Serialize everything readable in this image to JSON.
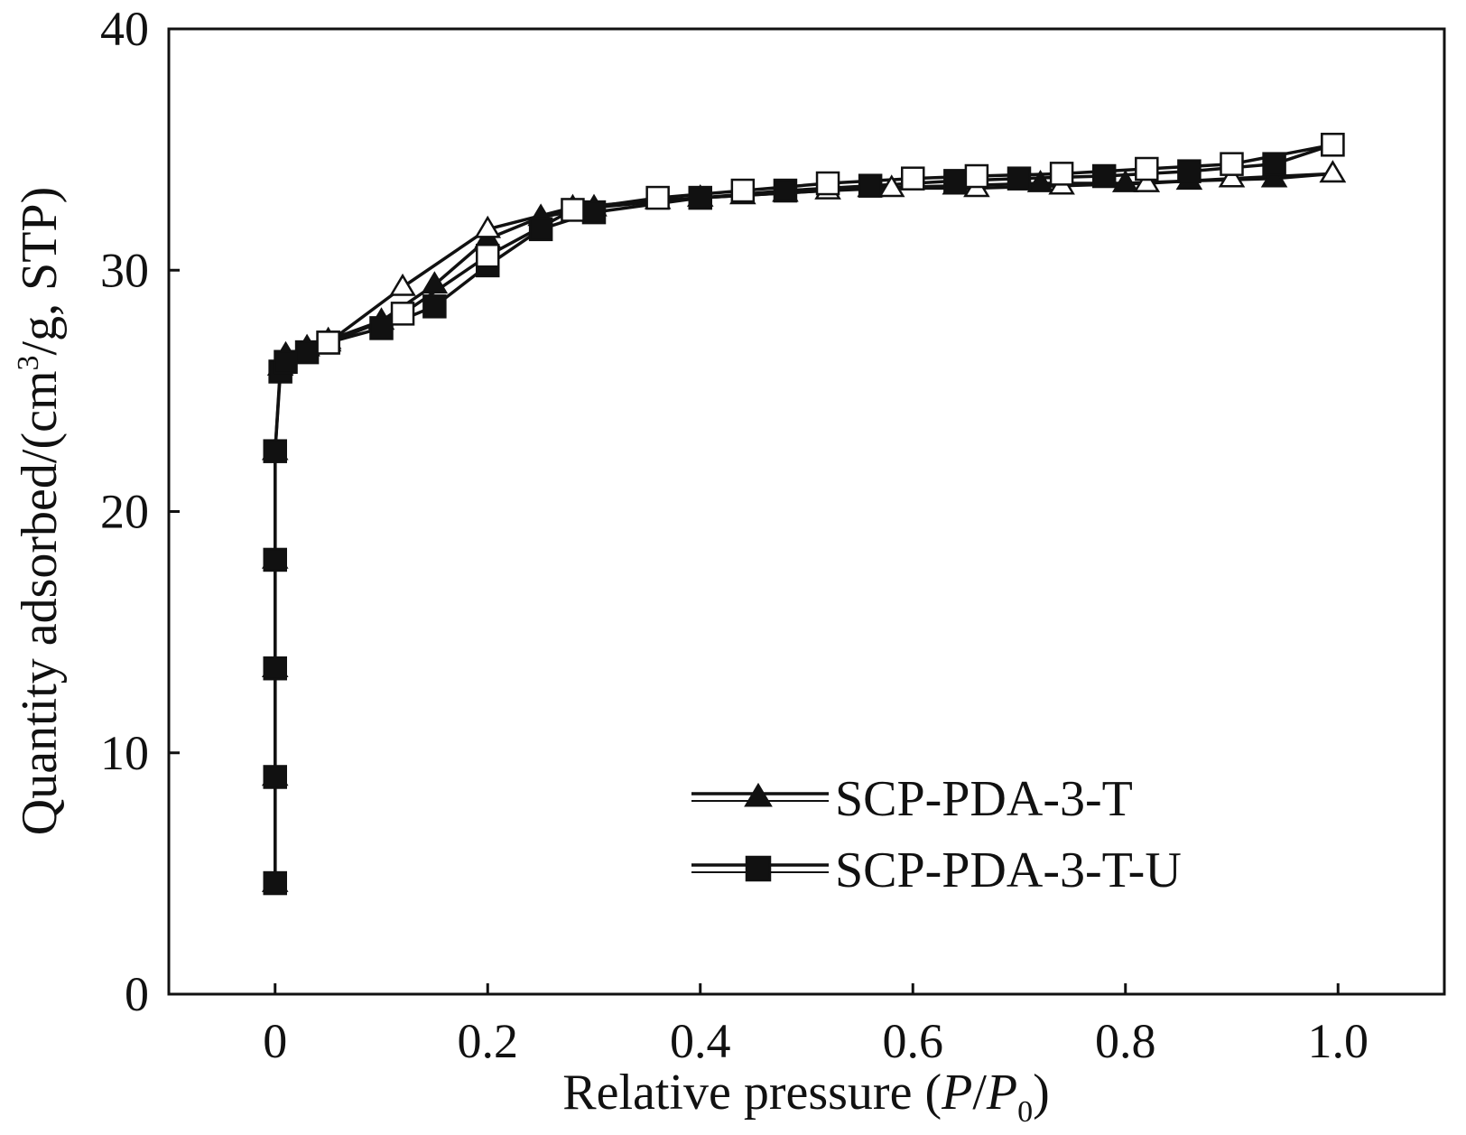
{
  "chart_data": {
    "type": "line",
    "title": "",
    "xlabel": {
      "prefix": "Relative pressure (",
      "var1": "P",
      "slash": "/",
      "var2": "P",
      "sub": "0",
      "suffix": ")"
    },
    "ylabel": {
      "prefix": "Quantity adsorbed/(cm",
      "sup": "3",
      "suffix": "/g, STP)"
    },
    "xlim": [
      -0.1,
      1.1
    ],
    "ylim": [
      0,
      40
    ],
    "xticks": [
      0,
      0.2,
      0.4,
      0.6,
      0.8,
      1.0
    ],
    "xtick_labels": [
      "0",
      "0.2",
      "0.4",
      "0.6",
      "0.8",
      "1.0"
    ],
    "yticks": [
      0,
      10,
      20,
      30,
      40
    ],
    "ytick_labels": [
      "0",
      "10",
      "20",
      "30",
      "40"
    ],
    "grid": false,
    "legend": {
      "position": "bottom-right"
    },
    "series": [
      {
        "name": "SCP-PDA-3-T",
        "marker": "triangle",
        "branch": "adsorption",
        "points": [
          [
            0.0,
            4.6
          ],
          [
            0.0,
            9.0
          ],
          [
            0.0,
            13.5
          ],
          [
            0.0,
            18.0
          ],
          [
            0.0,
            22.5
          ],
          [
            0.005,
            26.0
          ],
          [
            0.01,
            26.5
          ],
          [
            0.03,
            26.8
          ],
          [
            0.05,
            27.1
          ],
          [
            0.1,
            27.9
          ],
          [
            0.15,
            29.4
          ],
          [
            0.2,
            31.3
          ],
          [
            0.25,
            32.2
          ],
          [
            0.3,
            32.6
          ],
          [
            0.4,
            33.0
          ],
          [
            0.48,
            33.2
          ],
          [
            0.56,
            33.4
          ],
          [
            0.64,
            33.5
          ],
          [
            0.72,
            33.6
          ],
          [
            0.8,
            33.6
          ],
          [
            0.86,
            33.7
          ],
          [
            0.94,
            33.8
          ],
          [
            0.995,
            34.0
          ]
        ]
      },
      {
        "name": "SCP-PDA-3-T",
        "marker": "triangle-open",
        "branch": "desorption",
        "points": [
          [
            0.995,
            34.0
          ],
          [
            0.9,
            33.8
          ],
          [
            0.82,
            33.6
          ],
          [
            0.74,
            33.5
          ],
          [
            0.66,
            33.4
          ],
          [
            0.58,
            33.4
          ],
          [
            0.52,
            33.3
          ],
          [
            0.44,
            33.1
          ],
          [
            0.36,
            32.9
          ],
          [
            0.28,
            32.6
          ],
          [
            0.2,
            31.7
          ],
          [
            0.12,
            29.3
          ],
          [
            0.05,
            27.0
          ]
        ]
      },
      {
        "name": "SCP-PDA-3-T-U",
        "marker": "square",
        "branch": "adsorption",
        "points": [
          [
            0.0,
            4.6
          ],
          [
            0.0,
            9.0
          ],
          [
            0.0,
            13.5
          ],
          [
            0.0,
            18.0
          ],
          [
            0.0,
            22.5
          ],
          [
            0.005,
            25.8
          ],
          [
            0.01,
            26.2
          ],
          [
            0.03,
            26.6
          ],
          [
            0.05,
            27.0
          ],
          [
            0.1,
            27.6
          ],
          [
            0.15,
            28.5
          ],
          [
            0.2,
            30.2
          ],
          [
            0.25,
            31.7
          ],
          [
            0.3,
            32.4
          ],
          [
            0.4,
            33.0
          ],
          [
            0.48,
            33.3
          ],
          [
            0.56,
            33.5
          ],
          [
            0.64,
            33.7
          ],
          [
            0.7,
            33.8
          ],
          [
            0.78,
            33.9
          ],
          [
            0.86,
            34.1
          ],
          [
            0.94,
            34.4
          ],
          [
            0.995,
            35.2
          ]
        ]
      },
      {
        "name": "SCP-PDA-3-T-U",
        "marker": "square-open",
        "branch": "desorption",
        "points": [
          [
            0.995,
            35.2
          ],
          [
            0.9,
            34.4
          ],
          [
            0.82,
            34.2
          ],
          [
            0.74,
            34.0
          ],
          [
            0.66,
            33.9
          ],
          [
            0.6,
            33.8
          ],
          [
            0.52,
            33.6
          ],
          [
            0.44,
            33.3
          ],
          [
            0.36,
            33.0
          ],
          [
            0.28,
            32.5
          ],
          [
            0.2,
            30.6
          ],
          [
            0.12,
            28.2
          ],
          [
            0.05,
            27.0
          ]
        ]
      }
    ],
    "legend_entries": [
      {
        "label": "SCP-PDA-3-T",
        "marker": "triangle"
      },
      {
        "label": "SCP-PDA-3-T-U",
        "marker": "square"
      }
    ]
  }
}
